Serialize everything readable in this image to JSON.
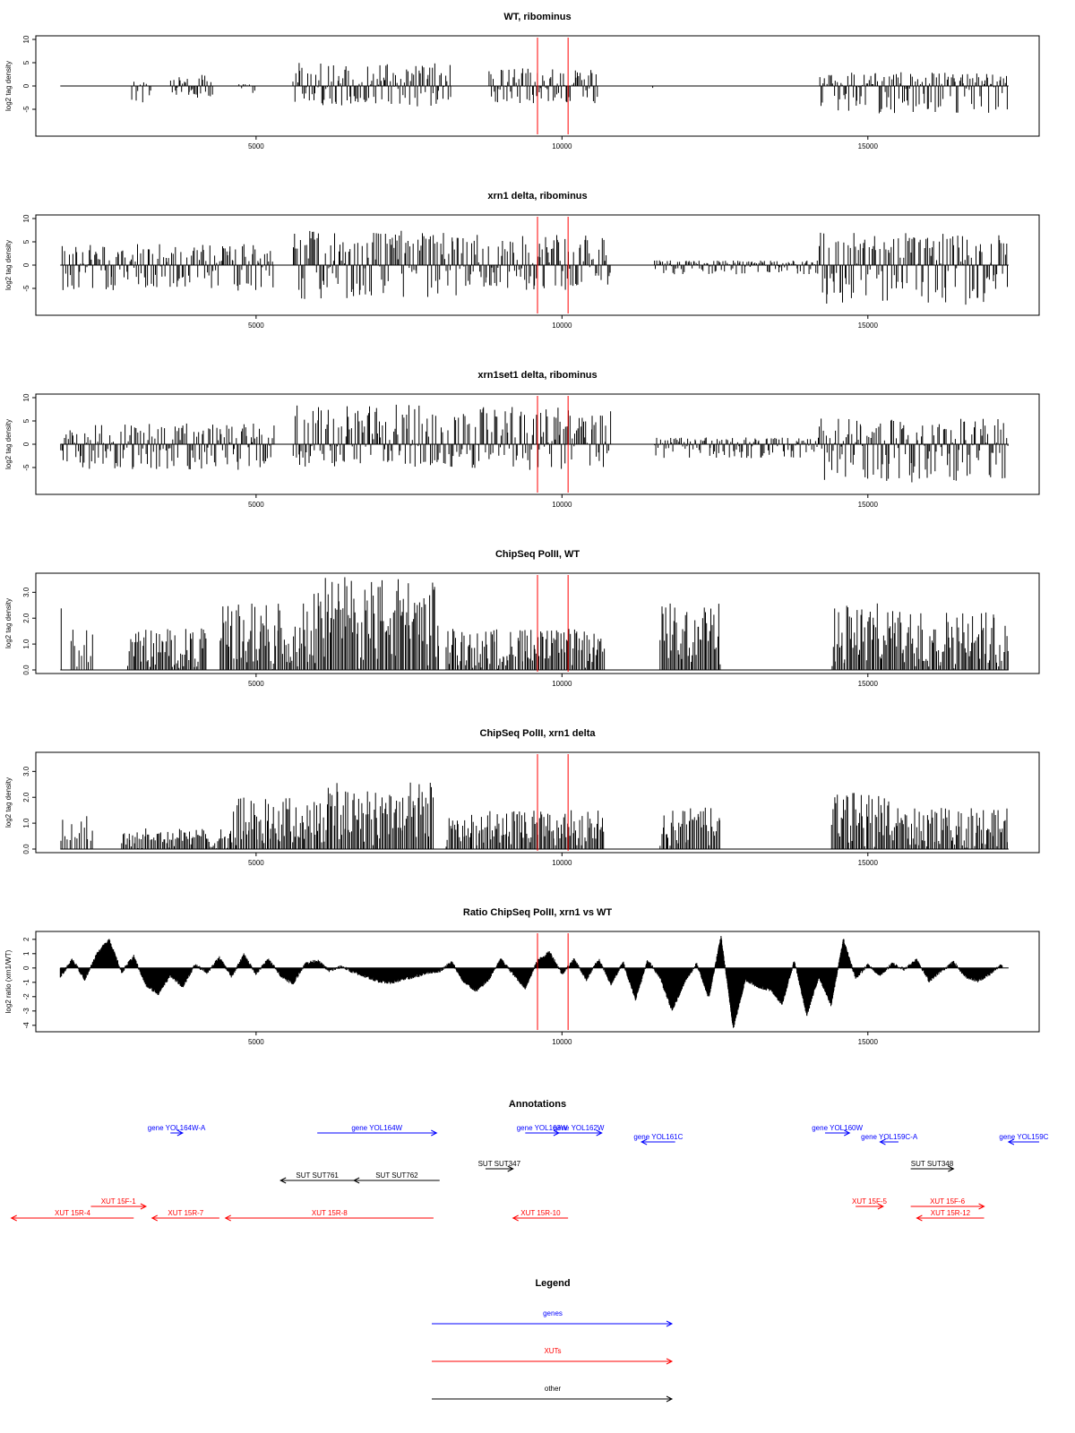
{
  "chart_data": [
    {
      "type": "bar",
      "title": "WT, ribominus",
      "ylabel": "log2 tag density",
      "xlim": [
        1400,
        17800
      ],
      "ylim": [
        -10,
        10
      ],
      "x_ticks": [
        5000,
        10000,
        15000
      ],
      "y_ticks": [
        -5,
        0,
        5,
        10
      ],
      "markers": [
        9600,
        10100
      ],
      "regions": [
        {
          "start": 1780,
          "end": 1800,
          "amp_pos": 0.0,
          "amp_neg": 2.0
        },
        {
          "start": 2950,
          "end": 3300,
          "amp_pos": 1.0,
          "amp_neg": 4.0
        },
        {
          "start": 3600,
          "end": 4300,
          "amp_pos": 2.5,
          "amp_neg": 2.5
        },
        {
          "start": 4700,
          "end": 5100,
          "amp_pos": 0.5,
          "amp_neg": 2.5
        },
        {
          "start": 5600,
          "end": 8200,
          "amp_pos": 5.0,
          "amp_neg": 4.5
        },
        {
          "start": 8800,
          "end": 10600,
          "amp_pos": 3.8,
          "amp_neg": 4.0
        },
        {
          "start": 11450,
          "end": 11500,
          "amp_pos": 0.0,
          "amp_neg": 2.0
        },
        {
          "start": 12450,
          "end": 12500,
          "amp_pos": 0.0,
          "amp_neg": 1.5
        },
        {
          "start": 14200,
          "end": 17300,
          "amp_pos": 3.0,
          "amp_neg": 6.0
        }
      ]
    },
    {
      "type": "bar",
      "title": "xrn1 delta, ribominus",
      "ylabel": "log2 tag density",
      "xlim": [
        1400,
        17800
      ],
      "ylim": [
        -10,
        10
      ],
      "x_ticks": [
        5000,
        10000,
        15000
      ],
      "y_ticks": [
        -5,
        0,
        5,
        10
      ],
      "markers": [
        9600,
        10100
      ],
      "regions": [
        {
          "start": 1800,
          "end": 5300,
          "amp_pos": 4.5,
          "amp_neg": 5.5
        },
        {
          "start": 5600,
          "end": 8300,
          "amp_pos": 7.5,
          "amp_neg": 7.5
        },
        {
          "start": 8300,
          "end": 10800,
          "amp_pos": 6.5,
          "amp_neg": 5.5
        },
        {
          "start": 11500,
          "end": 14200,
          "amp_pos": 1.0,
          "amp_neg": 2.0
        },
        {
          "start": 14200,
          "end": 17300,
          "amp_pos": 7.0,
          "amp_neg": 8.5
        }
      ]
    },
    {
      "type": "bar",
      "title": "xrn1set1 delta, ribominus",
      "ylabel": "log2 tag density",
      "xlim": [
        1400,
        17800
      ],
      "ylim": [
        -10,
        10
      ],
      "x_ticks": [
        5000,
        10000,
        15000
      ],
      "y_ticks": [
        -5,
        0,
        5,
        10
      ],
      "markers": [
        9600,
        10100
      ],
      "regions": [
        {
          "start": 1800,
          "end": 5300,
          "amp_pos": 4.5,
          "amp_neg": 5.5
        },
        {
          "start": 5600,
          "end": 8300,
          "amp_pos": 8.5,
          "amp_neg": 5.0
        },
        {
          "start": 8300,
          "end": 10800,
          "amp_pos": 8.0,
          "amp_neg": 5.5
        },
        {
          "start": 11500,
          "end": 14200,
          "amp_pos": 1.5,
          "amp_neg": 3.0
        },
        {
          "start": 14200,
          "end": 17300,
          "amp_pos": 5.5,
          "amp_neg": 8.5
        }
      ]
    },
    {
      "type": "bar",
      "title": "ChipSeq PolII, WT",
      "ylabel": "log2 tag density",
      "xlim": [
        1400,
        17800
      ],
      "ylim": [
        0,
        3.6
      ],
      "x_ticks": [
        5000,
        10000,
        15000
      ],
      "y_ticks": [
        0.0,
        1.0,
        2.0,
        3.0
      ],
      "markers": [
        9600,
        10100
      ],
      "regions": [
        {
          "start": 1800,
          "end": 1850,
          "amp_pos": 2.6,
          "amp_neg": 0
        },
        {
          "start": 1950,
          "end": 2350,
          "amp_pos": 1.6,
          "amp_neg": 0
        },
        {
          "start": 2900,
          "end": 4200,
          "amp_pos": 1.6,
          "amp_neg": 0
        },
        {
          "start": 4400,
          "end": 5800,
          "amp_pos": 2.6,
          "amp_neg": 0
        },
        {
          "start": 5800,
          "end": 8000,
          "amp_pos": 3.6,
          "amp_neg": 0
        },
        {
          "start": 8100,
          "end": 10700,
          "amp_pos": 1.6,
          "amp_neg": 0
        },
        {
          "start": 11600,
          "end": 12600,
          "amp_pos": 2.6,
          "amp_neg": 0
        },
        {
          "start": 14400,
          "end": 15400,
          "amp_pos": 2.6,
          "amp_neg": 0
        },
        {
          "start": 15400,
          "end": 17300,
          "amp_pos": 2.3,
          "amp_neg": 0
        }
      ]
    },
    {
      "type": "bar",
      "title": "ChipSeq PolII, xrn1 delta",
      "ylabel": "log2 tag density",
      "xlim": [
        1400,
        17800
      ],
      "ylim": [
        0,
        3.6
      ],
      "x_ticks": [
        5000,
        10000,
        15000
      ],
      "y_ticks": [
        0.0,
        1.0,
        2.0,
        3.0
      ],
      "markers": [
        9600,
        10100
      ],
      "regions": [
        {
          "start": 1800,
          "end": 2350,
          "amp_pos": 1.3,
          "amp_neg": 0
        },
        {
          "start": 2800,
          "end": 4600,
          "amp_pos": 0.8,
          "amp_neg": 0
        },
        {
          "start": 4600,
          "end": 6000,
          "amp_pos": 2.0,
          "amp_neg": 0
        },
        {
          "start": 6000,
          "end": 7900,
          "amp_pos": 2.6,
          "amp_neg": 0
        },
        {
          "start": 8100,
          "end": 10700,
          "amp_pos": 1.5,
          "amp_neg": 0
        },
        {
          "start": 11600,
          "end": 12600,
          "amp_pos": 1.6,
          "amp_neg": 0
        },
        {
          "start": 14400,
          "end": 15400,
          "amp_pos": 2.2,
          "amp_neg": 0
        },
        {
          "start": 15400,
          "end": 17300,
          "amp_pos": 1.6,
          "amp_neg": 0
        }
      ]
    },
    {
      "type": "area",
      "title": "Ratio ChipSeq PolII, xrn1 vs WT",
      "ylabel": "log2 ratio (xrn1/WT)",
      "xlim": [
        1400,
        17800
      ],
      "ylim": [
        -4.2,
        2.3
      ],
      "x_ticks": [
        5000,
        10000,
        15000
      ],
      "y_ticks": [
        -4,
        -3,
        -2,
        -1,
        0,
        1,
        2
      ],
      "markers": [
        9600,
        10100
      ],
      "x": [
        1800,
        2000,
        2200,
        2400,
        2600,
        2800,
        3000,
        3200,
        3400,
        3600,
        3800,
        4000,
        4200,
        4400,
        4600,
        4800,
        5000,
        5200,
        5400,
        5600,
        5800,
        6000,
        6200,
        6400,
        6600,
        6800,
        7000,
        7200,
        7400,
        7600,
        7800,
        8000,
        8200,
        8400,
        8600,
        8800,
        9000,
        9200,
        9400,
        9600,
        9800,
        10000,
        10200,
        10400,
        10600,
        10800,
        11000,
        11200,
        11400,
        11600,
        11800,
        12000,
        12200,
        12400,
        12600,
        12800,
        13000,
        13200,
        13400,
        13600,
        13800,
        14000,
        14200,
        14400,
        14600,
        14800,
        15000,
        15200,
        15400,
        15600,
        15800,
        16000,
        16200,
        16400,
        16600,
        16800,
        17000,
        17200
      ],
      "y": [
        -0.6,
        0.6,
        -0.8,
        1.0,
        2.0,
        -0.3,
        0.8,
        -1.2,
        -1.8,
        -0.5,
        -1.3,
        0.2,
        -0.3,
        0.7,
        -0.6,
        0.9,
        -0.4,
        0.6,
        -0.5,
        -1.1,
        0.3,
        0.5,
        -0.2,
        0.1,
        -0.3,
        -0.6,
        -0.9,
        -1.0,
        -0.8,
        -0.6,
        -0.3,
        -0.2,
        0.4,
        -1.0,
        -1.6,
        -0.8,
        0.6,
        -0.4,
        -1.4,
        0.5,
        1.1,
        -0.4,
        0.6,
        -0.8,
        0.6,
        -1.1,
        0.4,
        -2.2,
        0.5,
        -0.6,
        -3.0,
        -1.0,
        0.3,
        -2.1,
        2.2,
        -4.2,
        -0.8,
        -1.3,
        -1.5,
        -2.5,
        0.5,
        -3.3,
        -0.6,
        -2.6,
        2.0,
        -0.7,
        0.2,
        -0.5,
        0.3,
        -0.1,
        0.6,
        -0.9,
        -0.2,
        0.4,
        -0.6,
        -0.9,
        -0.4,
        0.3
      ]
    }
  ],
  "annotations": {
    "title": "Annotations",
    "xlim": [
      1400,
      17800
    ],
    "items": [
      {
        "label": "gene YOL164W-A",
        "start": 3600,
        "end": 3800,
        "row": 0,
        "color": "#0000ff",
        "dir": 1
      },
      {
        "label": "gene YOL164W",
        "start": 6000,
        "end": 7950,
        "row": 0,
        "color": "#0000ff",
        "dir": 1
      },
      {
        "label": "gene YOL163W",
        "start": 9400,
        "end": 9950,
        "row": 0,
        "color": "#0000ff",
        "dir": 1
      },
      {
        "label": "gene YOL162W",
        "start": 9900,
        "end": 10650,
        "row": 0,
        "color": "#0000ff",
        "dir": 1
      },
      {
        "label": "gene YOL161C",
        "start": 11300,
        "end": 11850,
        "row": 1,
        "color": "#0000ff",
        "dir": -1
      },
      {
        "label": "gene YOL160W",
        "start": 14300,
        "end": 14700,
        "row": 0,
        "color": "#0000ff",
        "dir": 1
      },
      {
        "label": "gene YOL159C-A",
        "start": 15200,
        "end": 15500,
        "row": 1,
        "color": "#0000ff",
        "dir": -1
      },
      {
        "label": "gene YOL159C",
        "start": 17300,
        "end": 17800,
        "row": 1,
        "color": "#0000ff",
        "dir": -1
      },
      {
        "label": "SUT SUT761",
        "start": 5400,
        "end": 6600,
        "row": 3,
        "color": "#000000",
        "dir": -1
      },
      {
        "label": "SUT SUT762",
        "start": 6600,
        "end": 8000,
        "row": 3,
        "color": "#000000",
        "dir": -1
      },
      {
        "label": "SUT SUT347",
        "start": 8750,
        "end": 9200,
        "row": 2,
        "color": "#000000",
        "dir": 1
      },
      {
        "label": "SUT SUT348",
        "start": 15700,
        "end": 16400,
        "row": 2,
        "color": "#000000",
        "dir": 1
      },
      {
        "label": "XUT 15F-1",
        "start": 2300,
        "end": 3200,
        "row": 4,
        "color": "#ff0000",
        "dir": 1
      },
      {
        "label": "XUT 15R-4",
        "start": 1000,
        "end": 3000,
        "row": 5,
        "color": "#ff0000",
        "dir": -1
      },
      {
        "label": "XUT 15R-7",
        "start": 3300,
        "end": 4400,
        "row": 5,
        "color": "#ff0000",
        "dir": -1
      },
      {
        "label": "XUT 15R-8",
        "start": 4500,
        "end": 7900,
        "row": 5,
        "color": "#ff0000",
        "dir": -1
      },
      {
        "label": "XUT 15R-10",
        "start": 9200,
        "end": 10100,
        "row": 5,
        "color": "#ff0000",
        "dir": -1
      },
      {
        "label": "XUT 15F-5",
        "start": 14800,
        "end": 15250,
        "row": 4,
        "color": "#ff0000",
        "dir": 1
      },
      {
        "label": "XUT 15F-6",
        "start": 15700,
        "end": 16900,
        "row": 4,
        "color": "#ff0000",
        "dir": 1
      },
      {
        "label": "XUT 15R-12",
        "start": 15800,
        "end": 16900,
        "row": 5,
        "color": "#ff0000",
        "dir": -1
      }
    ]
  },
  "legend": {
    "title": "Legend",
    "entries": [
      {
        "label": "genes",
        "color": "#0000ff"
      },
      {
        "label": "XUTs",
        "color": "#ff0000"
      },
      {
        "label": "other",
        "color": "#000000"
      }
    ]
  },
  "colors": {
    "bars": "#000000",
    "marker": "#ff0000",
    "axis": "#000000"
  }
}
